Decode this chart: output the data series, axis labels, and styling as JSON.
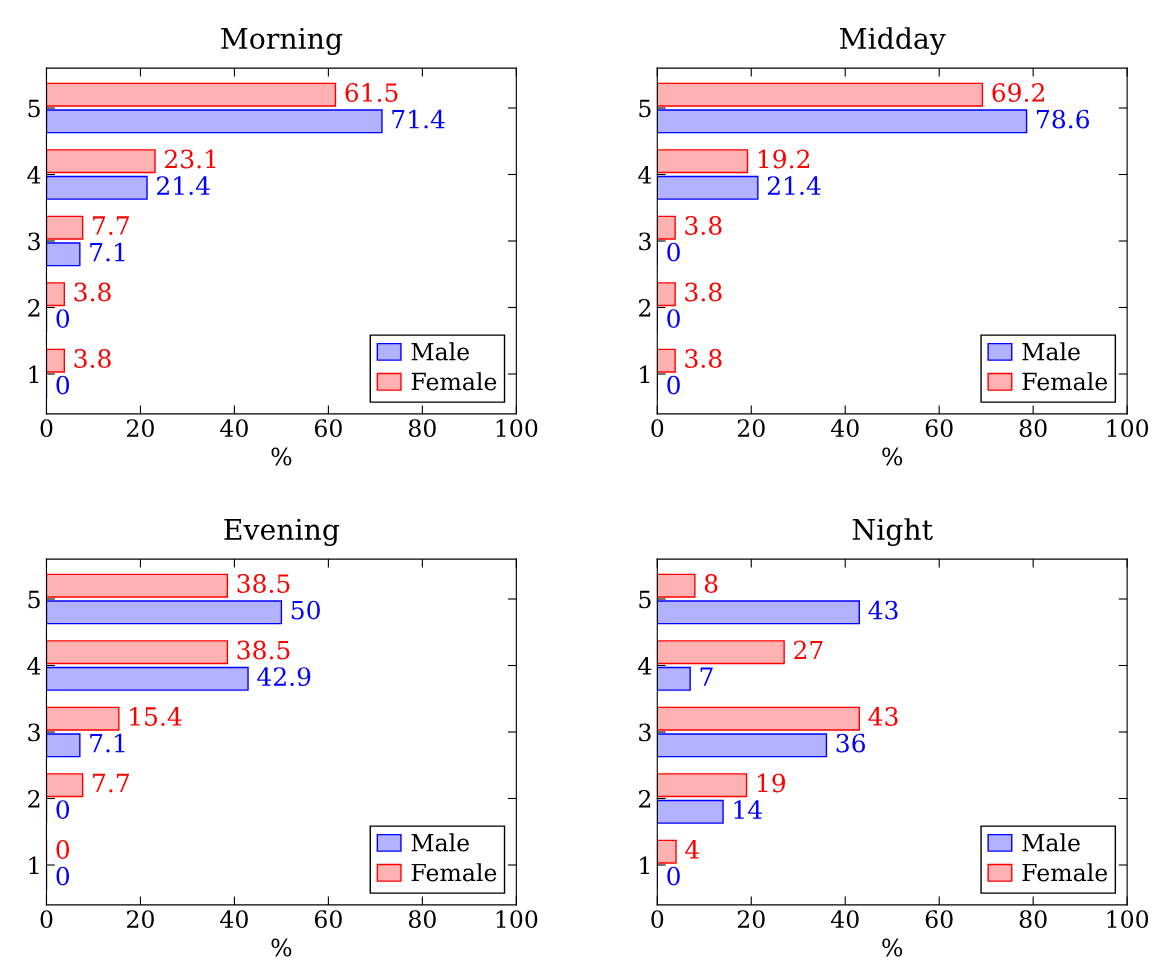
{
  "chart_data": [
    {
      "type": "bar",
      "orientation": "horizontal",
      "title": "Morning",
      "xlabel": "%",
      "categories": [
        "5",
        "4",
        "3",
        "2",
        "1"
      ],
      "xlim": [
        0,
        100
      ],
      "xticks": [
        0,
        20,
        40,
        60,
        80,
        100
      ],
      "data_labels": true,
      "legend": "bottom right",
      "grid": false,
      "series": [
        {
          "name": "Male",
          "color": "#0000ff",
          "values": [
            71.4,
            21.4,
            7.1,
            0,
            0
          ]
        },
        {
          "name": "Female",
          "color": "#ff0000",
          "values": [
            61.5,
            23.1,
            7.7,
            3.8,
            3.8
          ]
        }
      ]
    },
    {
      "type": "bar",
      "orientation": "horizontal",
      "title": "Midday",
      "xlabel": "%",
      "categories": [
        "5",
        "4",
        "3",
        "2",
        "1"
      ],
      "xlim": [
        0,
        100
      ],
      "xticks": [
        0,
        20,
        40,
        60,
        80,
        100
      ],
      "data_labels": true,
      "legend": "bottom right",
      "grid": false,
      "series": [
        {
          "name": "Male",
          "color": "#0000ff",
          "values": [
            78.6,
            21.4,
            0,
            0,
            0
          ]
        },
        {
          "name": "Female",
          "color": "#ff0000",
          "values": [
            69.2,
            19.2,
            3.8,
            3.8,
            3.8
          ]
        }
      ]
    },
    {
      "type": "bar",
      "orientation": "horizontal",
      "title": "Evening",
      "xlabel": "%",
      "categories": [
        "5",
        "4",
        "3",
        "2",
        "1"
      ],
      "xlim": [
        0,
        100
      ],
      "xticks": [
        0,
        20,
        40,
        60,
        80,
        100
      ],
      "data_labels": true,
      "legend": "bottom right",
      "grid": false,
      "series": [
        {
          "name": "Male",
          "color": "#0000ff",
          "values": [
            50,
            42.9,
            7.1,
            0,
            0
          ]
        },
        {
          "name": "Female",
          "color": "#ff0000",
          "values": [
            38.5,
            38.5,
            15.4,
            7.7,
            0
          ]
        }
      ]
    },
    {
      "type": "bar",
      "orientation": "horizontal",
      "title": "Night",
      "xlabel": "%",
      "categories": [
        "5",
        "4",
        "3",
        "2",
        "1"
      ],
      "xlim": [
        0,
        100
      ],
      "xticks": [
        0,
        20,
        40,
        60,
        80,
        100
      ],
      "data_labels": true,
      "legend": "bottom right",
      "grid": false,
      "series": [
        {
          "name": "Male",
          "color": "#0000ff",
          "values": [
            43,
            7,
            36,
            14,
            0
          ]
        },
        {
          "name": "Female",
          "color": "#ff0000",
          "values": [
            8,
            27,
            43,
            19,
            4
          ]
        }
      ]
    }
  ]
}
